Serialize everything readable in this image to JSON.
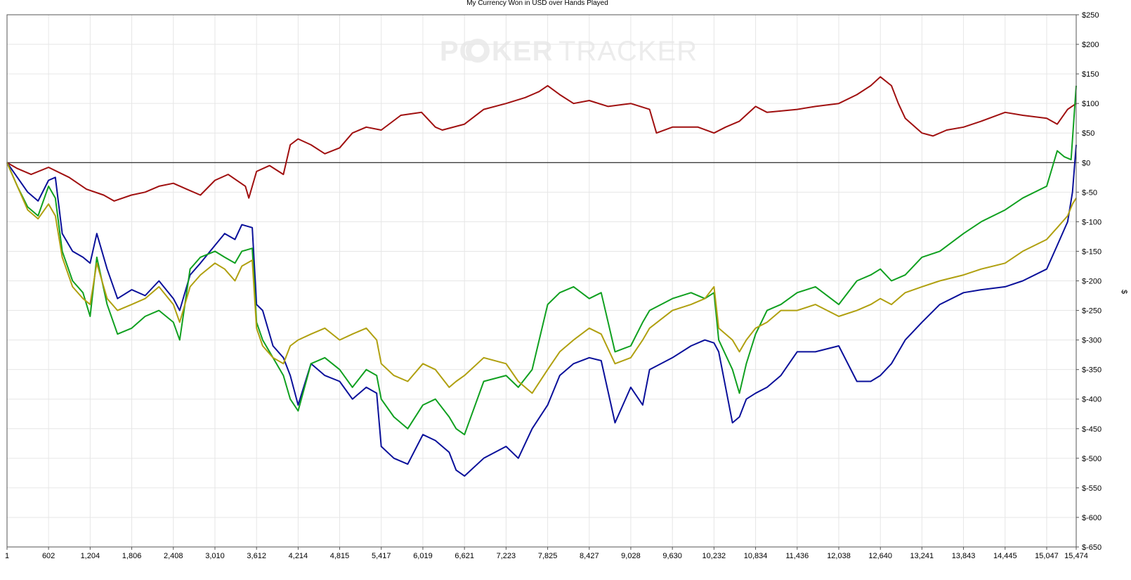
{
  "chart_data": {
    "type": "line",
    "title": "My Currency Won in USD over Hands Played",
    "xlabel": "",
    "ylabel": "$",
    "watermark": {
      "part1": "PO",
      "part2": "KER",
      "part3": "TRACKER"
    },
    "xlim": [
      1,
      15474
    ],
    "ylim": [
      -650,
      250
    ],
    "x_ticks": [
      1,
      602,
      1204,
      1806,
      2408,
      3010,
      3612,
      4214,
      4815,
      5417,
      6019,
      6621,
      7223,
      7825,
      8427,
      9028,
      9630,
      10232,
      10834,
      11436,
      12038,
      12640,
      13241,
      13843,
      14445,
      15047,
      15474
    ],
    "x_tick_labels": [
      "1",
      "602",
      "1,204",
      "1,806",
      "2,408",
      "3,010",
      "3,612",
      "4,214",
      "4,815",
      "5,417",
      "6,019",
      "6,621",
      "7,223",
      "7,825",
      "8,427",
      "9,028",
      "9,630",
      "10,232",
      "10,834",
      "11,436",
      "12,038",
      "12,640",
      "13,241",
      "13,843",
      "14,445",
      "15,047",
      "15,474"
    ],
    "y_ticks": [
      250,
      200,
      150,
      100,
      50,
      0,
      -50,
      -100,
      -150,
      -200,
      -250,
      -300,
      -350,
      -400,
      -450,
      -500,
      -550,
      -600,
      -650
    ],
    "y_tick_labels": [
      "$250",
      "$200",
      "$150",
      "$100",
      "$50",
      "$0",
      "$-50",
      "$-100",
      "$-150",
      "$-200",
      "$-250",
      "$-300",
      "$-350",
      "$-400",
      "$-450",
      "$-500",
      "$-550",
      "$-600",
      "$-650"
    ],
    "grid": true,
    "zero_line": true,
    "series": [
      {
        "color": "#a01010",
        "x": [
          1,
          150,
          350,
          602,
          900,
          1150,
          1400,
          1550,
          1800,
          2000,
          2200,
          2408,
          2600,
          2800,
          3010,
          3200,
          3450,
          3500,
          3612,
          3800,
          4000,
          4100,
          4214,
          4400,
          4600,
          4815,
          5000,
          5200,
          5417,
          5700,
          6000,
          6200,
          6300,
          6621,
          6900,
          7223,
          7500,
          7700,
          7825,
          8000,
          8200,
          8427,
          8700,
          9028,
          9300,
          9400,
          9630,
          10000,
          10232,
          10400,
          10600,
          10834,
          11000,
          11436,
          11700,
          12038,
          12300,
          12500,
          12640,
          12800,
          12900,
          13000,
          13241,
          13400,
          13600,
          13843,
          14100,
          14445,
          14700,
          15047,
          15200,
          15350,
          15474
        ],
        "y": [
          0,
          -10,
          -20,
          -8,
          -25,
          -45,
          -55,
          -65,
          -55,
          -50,
          -40,
          -35,
          -45,
          -55,
          -30,
          -20,
          -40,
          -60,
          -15,
          -5,
          -20,
          30,
          40,
          30,
          15,
          25,
          50,
          60,
          55,
          80,
          85,
          60,
          55,
          65,
          90,
          100,
          110,
          120,
          130,
          115,
          100,
          105,
          95,
          100,
          90,
          50,
          60,
          60,
          50,
          60,
          70,
          95,
          85,
          90,
          95,
          100,
          115,
          130,
          145,
          130,
          100,
          75,
          50,
          45,
          55,
          60,
          70,
          85,
          80,
          75,
          65,
          90,
          100
        ]
      },
      {
        "color": "#0a109a",
        "x": [
          1,
          150,
          300,
          450,
          602,
          700,
          800,
          950,
          1100,
          1204,
          1300,
          1450,
          1600,
          1806,
          2000,
          2200,
          2408,
          2500,
          2650,
          2800,
          3010,
          3150,
          3300,
          3400,
          3550,
          3612,
          3700,
          3850,
          4000,
          4100,
          4214,
          4400,
          4600,
          4815,
          5000,
          5200,
          5350,
          5417,
          5600,
          5800,
          6019,
          6200,
          6400,
          6500,
          6621,
          6900,
          7223,
          7400,
          7600,
          7825,
          8000,
          8200,
          8427,
          8600,
          8800,
          9028,
          9200,
          9300,
          9630,
          9900,
          10100,
          10232,
          10300,
          10500,
          10600,
          10700,
          10834,
          11000,
          11200,
          11436,
          11700,
          12038,
          12300,
          12500,
          12640,
          12800,
          13000,
          13241,
          13500,
          13843,
          14100,
          14445,
          14700,
          15047,
          15200,
          15350,
          15420,
          15474
        ],
        "y": [
          0,
          -25,
          -50,
          -65,
          -30,
          -25,
          -120,
          -150,
          -160,
          -170,
          -120,
          -180,
          -230,
          -215,
          -225,
          -200,
          -230,
          -250,
          -190,
          -170,
          -140,
          -120,
          -130,
          -105,
          -110,
          -240,
          -250,
          -310,
          -330,
          -360,
          -410,
          -340,
          -360,
          -370,
          -400,
          -380,
          -390,
          -480,
          -500,
          -510,
          -460,
          -470,
          -490,
          -520,
          -530,
          -500,
          -480,
          -500,
          -450,
          -410,
          -360,
          -340,
          -330,
          -335,
          -440,
          -380,
          -410,
          -350,
          -330,
          -310,
          -300,
          -305,
          -320,
          -440,
          -430,
          -400,
          -390,
          -380,
          -360,
          -320,
          -320,
          -310,
          -370,
          -370,
          -360,
          -340,
          -300,
          -270,
          -240,
          -220,
          -215,
          -210,
          -200,
          -180,
          -140,
          -100,
          -50,
          30
        ]
      },
      {
        "color": "#10a020",
        "x": [
          1,
          150,
          300,
          450,
          602,
          700,
          800,
          950,
          1100,
          1204,
          1300,
          1450,
          1600,
          1806,
          2000,
          2200,
          2408,
          2500,
          2650,
          2800,
          3010,
          3150,
          3300,
          3400,
          3550,
          3612,
          3700,
          3850,
          4000,
          4100,
          4214,
          4400,
          4600,
          4815,
          5000,
          5200,
          5350,
          5417,
          5600,
          5800,
          6019,
          6200,
          6400,
          6500,
          6621,
          6900,
          7223,
          7400,
          7600,
          7825,
          8000,
          8200,
          8427,
          8600,
          8800,
          9028,
          9200,
          9300,
          9630,
          9900,
          10100,
          10232,
          10300,
          10500,
          10600,
          10700,
          10834,
          11000,
          11200,
          11436,
          11700,
          12038,
          12300,
          12500,
          12640,
          12800,
          13000,
          13241,
          13500,
          13843,
          14100,
          14445,
          14700,
          15047,
          15200,
          15300,
          15400,
          15474
        ],
        "y": [
          0,
          -40,
          -75,
          -90,
          -40,
          -60,
          -150,
          -200,
          -220,
          -260,
          -160,
          -240,
          -290,
          -280,
          -260,
          -250,
          -270,
          -300,
          -180,
          -160,
          -150,
          -160,
          -170,
          -150,
          -145,
          -270,
          -300,
          -330,
          -360,
          -400,
          -420,
          -340,
          -330,
          -350,
          -380,
          -350,
          -360,
          -400,
          -430,
          -450,
          -410,
          -400,
          -430,
          -450,
          -460,
          -370,
          -360,
          -380,
          -350,
          -240,
          -220,
          -210,
          -230,
          -220,
          -320,
          -310,
          -270,
          -250,
          -230,
          -220,
          -230,
          -220,
          -300,
          -350,
          -390,
          -340,
          -290,
          -250,
          -240,
          -220,
          -210,
          -240,
          -200,
          -190,
          -180,
          -200,
          -190,
          -160,
          -150,
          -120,
          -100,
          -80,
          -60,
          -40,
          20,
          10,
          5,
          130
        ]
      },
      {
        "color": "#b0a010",
        "x": [
          1,
          150,
          300,
          450,
          602,
          700,
          800,
          950,
          1100,
          1204,
          1300,
          1450,
          1600,
          1806,
          2000,
          2200,
          2408,
          2500,
          2650,
          2800,
          3010,
          3150,
          3300,
          3400,
          3550,
          3612,
          3700,
          3850,
          4000,
          4100,
          4214,
          4400,
          4600,
          4815,
          5000,
          5200,
          5350,
          5417,
          5600,
          5800,
          6019,
          6200,
          6400,
          6500,
          6621,
          6900,
          7223,
          7400,
          7600,
          7825,
          8000,
          8200,
          8427,
          8600,
          8800,
          9028,
          9200,
          9300,
          9630,
          9900,
          10100,
          10232,
          10300,
          10500,
          10600,
          10700,
          10834,
          11000,
          11200,
          11436,
          11700,
          12038,
          12300,
          12500,
          12640,
          12800,
          13000,
          13241,
          13500,
          13843,
          14100,
          14445,
          14700,
          15047,
          15200,
          15350,
          15420,
          15474
        ],
        "y": [
          0,
          -40,
          -80,
          -95,
          -70,
          -90,
          -160,
          -210,
          -230,
          -240,
          -170,
          -230,
          -250,
          -240,
          -230,
          -210,
          -240,
          -270,
          -210,
          -190,
          -170,
          -180,
          -200,
          -175,
          -165,
          -280,
          -310,
          -330,
          -340,
          -310,
          -300,
          -290,
          -280,
          -300,
          -290,
          -280,
          -300,
          -340,
          -360,
          -370,
          -340,
          -350,
          -380,
          -370,
          -360,
          -330,
          -340,
          -370,
          -390,
          -350,
          -320,
          -300,
          -280,
          -290,
          -340,
          -330,
          -300,
          -280,
          -250,
          -240,
          -230,
          -210,
          -280,
          -300,
          -320,
          -300,
          -280,
          -270,
          -250,
          -250,
          -240,
          -260,
          -250,
          -240,
          -230,
          -240,
          -220,
          -210,
          -200,
          -190,
          -180,
          -170,
          -150,
          -130,
          -110,
          -90,
          -70,
          -60
        ]
      }
    ]
  }
}
